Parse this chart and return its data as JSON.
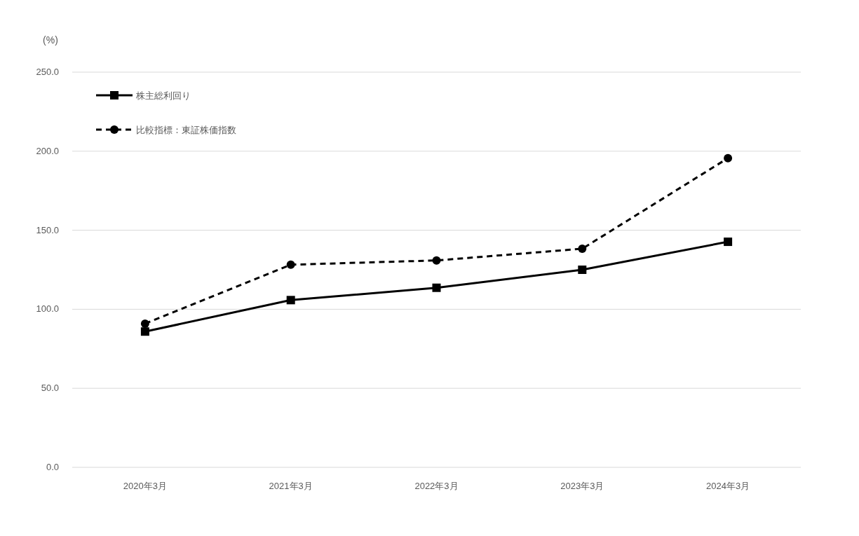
{
  "chart_data": {
    "type": "line",
    "ylabel": "(%)",
    "categories": [
      "2020年3月",
      "2021年3月",
      "2022年3月",
      "2023年3月",
      "2024年3月"
    ],
    "series": [
      {
        "name": "株主総利回り",
        "color": "#000000",
        "values": [
          85.9,
          105.8,
          113.6,
          125.0,
          142.7
        ],
        "marker": "square",
        "line_style": "solid"
      },
      {
        "name": "比較指標：東証株価指数",
        "color": "#000000",
        "values": [
          90.9,
          128.2,
          130.9,
          138.3,
          195.6
        ],
        "marker": "circle",
        "line_style": "dashed"
      }
    ],
    "ylim": [
      0,
      250
    ],
    "yticks": [
      {
        "value": 0,
        "label": "0.0"
      },
      {
        "value": 50,
        "label": "50.0"
      },
      {
        "value": 100,
        "label": "100.0"
      },
      {
        "value": 150,
        "label": "150.0"
      },
      {
        "value": 200,
        "label": "200.0"
      },
      {
        "value": 250,
        "label": "250.0"
      }
    ],
    "grid": "y",
    "legend": "top left"
  }
}
